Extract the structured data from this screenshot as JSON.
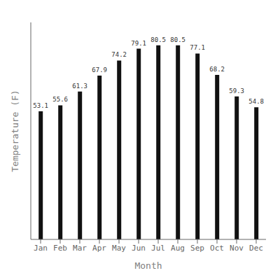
{
  "chart_data": {
    "type": "bar",
    "categories": [
      "Jan",
      "Feb",
      "Mar",
      "Apr",
      "May",
      "Jun",
      "Jul",
      "Aug",
      "Sep",
      "Oct",
      "Nov",
      "Dec"
    ],
    "values": [
      53.1,
      55.6,
      61.3,
      67.9,
      74.2,
      79.1,
      80.5,
      80.5,
      77.1,
      68.2,
      59.3,
      54.8
    ],
    "color": "#111111",
    "xlabel": "Month",
    "ylabel": "Temperature (F)",
    "ylim": [
      0,
      90
    ],
    "tick_labels": "x",
    "data_labels": true,
    "grid": false
  }
}
